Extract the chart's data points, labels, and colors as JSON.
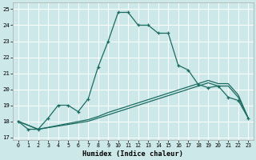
{
  "xlabel": "Humidex (Indice chaleur)",
  "bg_color": "#cde8e8",
  "grid_color": "#ffffff",
  "line_color": "#1a6b62",
  "xlim": [
    -0.5,
    23.5
  ],
  "ylim": [
    16.85,
    25.4
  ],
  "xticks": [
    0,
    1,
    2,
    3,
    4,
    5,
    6,
    7,
    8,
    9,
    10,
    11,
    12,
    13,
    14,
    15,
    16,
    17,
    18,
    19,
    20,
    21,
    22,
    23
  ],
  "yticks": [
    17,
    18,
    19,
    20,
    21,
    22,
    23,
    24,
    25
  ],
  "line1_x": [
    0,
    1,
    2,
    3,
    4,
    5,
    6,
    7,
    8,
    9,
    10,
    11,
    12,
    13,
    14,
    15,
    16,
    17,
    18,
    19,
    20,
    21,
    22,
    23
  ],
  "line1_y": [
    18.0,
    17.5,
    17.5,
    18.2,
    19.0,
    19.0,
    18.6,
    19.4,
    21.4,
    23.0,
    24.8,
    24.8,
    24.0,
    24.0,
    23.5,
    23.5,
    21.5,
    21.2,
    20.3,
    20.1,
    20.2,
    19.5,
    19.3,
    18.2
  ],
  "line2_x": [
    0,
    2,
    7,
    8,
    9,
    10,
    11,
    12,
    13,
    14,
    15,
    16,
    17,
    18,
    19,
    20,
    21,
    22,
    23
  ],
  "line2_y": [
    18.0,
    17.5,
    18.0,
    18.2,
    18.4,
    18.6,
    18.8,
    19.0,
    19.2,
    19.4,
    19.6,
    19.8,
    20.0,
    20.2,
    20.4,
    20.2,
    20.2,
    19.5,
    18.2
  ],
  "line3_x": [
    0,
    2,
    7,
    8,
    9,
    10,
    11,
    12,
    13,
    14,
    15,
    16,
    17,
    18,
    19,
    20,
    21,
    22,
    23
  ],
  "line3_y": [
    18.0,
    17.5,
    18.1,
    18.3,
    18.55,
    18.75,
    18.95,
    19.15,
    19.35,
    19.55,
    19.75,
    19.95,
    20.15,
    20.35,
    20.55,
    20.35,
    20.35,
    19.65,
    18.2
  ]
}
